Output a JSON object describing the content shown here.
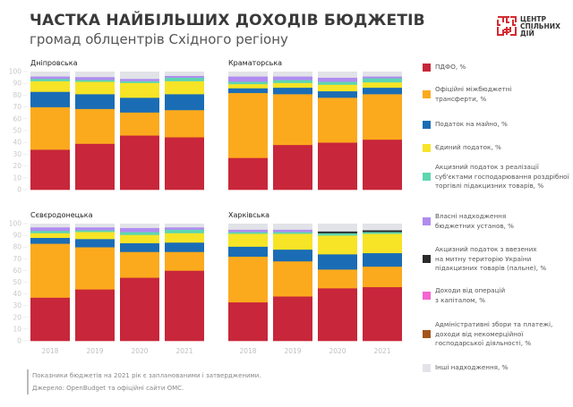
{
  "header": {
    "title": "ЧАСТКА НАЙБІЛЬШИХ ДОХОДІВ БЮДЖЕТІВ",
    "subtitle": "громад облцентрів Східного регіону"
  },
  "logo": {
    "lines": [
      "ЦЕНТР",
      "СПІЛЬНИХ",
      "ДІЙ"
    ],
    "color": "#d42b31"
  },
  "footer": {
    "note": "Показники бюджетів на 2021 рік є запланованими і затвердженими.",
    "source": "Джерело: OpenBudget та офіційні сайти ОМС."
  },
  "legend": [
    {
      "key": "pdfo",
      "label": "ПДФО, %",
      "color": "#c8263a"
    },
    {
      "key": "transfers",
      "label": "Офіційні міжбюджетні\nтрансферти, %",
      "color": "#fbaa1d"
    },
    {
      "key": "property",
      "label": "Податок на майно, %",
      "color": "#1a6db5"
    },
    {
      "key": "single",
      "label": "Єдиний податок, %",
      "color": "#f7e426"
    },
    {
      "key": "excise_retail",
      "label": "Акцизний податок з реалізації\nсуб'єктами господарювання роздрібної\nторгівлі підакцизних товарів, %",
      "color": "#5ed6b0"
    },
    {
      "key": "own",
      "label": "Власні надходження\nбюджетних установ, %",
      "color": "#b08cf0"
    },
    {
      "key": "excise_import",
      "label": "Акцизний податок з ввезених\nна митну територію України\nпідакцизних товарів (пальне), %",
      "color": "#2b2b2b"
    },
    {
      "key": "capital",
      "label": "Доходи від операцій\nз капіталом, %",
      "color": "#f466d0"
    },
    {
      "key": "admin",
      "label": "Адміністративні збори та платежі,\nдоходи від некомерційної\nгосподарської діяльності, %",
      "color": "#a4541b"
    },
    {
      "key": "other",
      "label": "Інші надходження, %",
      "color": "#e1e3e8"
    }
  ],
  "chart_data": [
    {
      "type": "bar",
      "stacked": true,
      "title": "Дніпровська",
      "categories": [
        "2018",
        "2019",
        "2020",
        "2021"
      ],
      "yticks": [
        "0",
        "10",
        "20",
        "30",
        "40",
        "50",
        "60",
        "70",
        "80",
        "90",
        "100"
      ],
      "ylim": [
        0,
        100
      ],
      "series": [
        {
          "name": "ПДФО, %",
          "values": [
            34,
            39,
            46,
            44.5
          ]
        },
        {
          "name": "Офіційні міжбюджетні трансферти, %",
          "values": [
            36,
            29.5,
            19.5,
            23
          ]
        },
        {
          "name": "Податок на майно, %",
          "values": [
            13,
            12.5,
            12.5,
            13.5
          ]
        },
        {
          "name": "Єдиний податок, %",
          "values": [
            9,
            10.5,
            12.5,
            11
          ]
        },
        {
          "name": "Акцизний податок з реалізації суб'єктами господарювання роздрібної торгівлі підакцизних товарів, %",
          "values": [
            2,
            1.5,
            1.5,
            3
          ]
        },
        {
          "name": "Власні надходження бюджетних установ, %",
          "values": [
            2,
            2.5,
            2,
            1.5
          ]
        },
        {
          "name": "Акцизний податок з ввезених на митну територію України підакцизних товарів (пальне), %",
          "values": [
            0,
            0,
            0,
            0
          ]
        },
        {
          "name": "Інші надходження, %",
          "values": [
            4,
            4.5,
            6,
            3.5
          ]
        }
      ]
    },
    {
      "type": "bar",
      "stacked": true,
      "title": "Краматорська",
      "categories": [
        "2018",
        "2019",
        "2020",
        "2021"
      ],
      "ylim": [
        0,
        100
      ],
      "series": [
        {
          "name": "ПДФО, %",
          "values": [
            27,
            38,
            40,
            42.5
          ]
        },
        {
          "name": "Офіційні міжбюджетні трансферти, %",
          "values": [
            55,
            43,
            38,
            38.5
          ]
        },
        {
          "name": "Податок на майно, %",
          "values": [
            4,
            5.5,
            5.5,
            5.5
          ]
        },
        {
          "name": "Єдиний податок, %",
          "values": [
            3.5,
            4,
            5.5,
            4.5
          ]
        },
        {
          "name": "Акцизний податок з реалізації суб'єктами господарювання роздрібної торгівлі підакцизних товарів, %",
          "values": [
            2,
            2.5,
            2.5,
            3.5
          ]
        },
        {
          "name": "Власні надходження бюджетних установ, %",
          "values": [
            4.5,
            3,
            3.5,
            1.5
          ]
        },
        {
          "name": "Акцизний податок з ввезених на митну територію України підакцизних товарів (пальне), %",
          "values": [
            0,
            0,
            0,
            0
          ]
        },
        {
          "name": "Інші надходження, %",
          "values": [
            4,
            4,
            5,
            4
          ]
        }
      ]
    },
    {
      "type": "bar",
      "stacked": true,
      "title": "Сєвєродонецька",
      "categories": [
        "2018",
        "2019",
        "2020",
        "2021"
      ],
      "yticks": [
        "0",
        "10",
        "20",
        "30",
        "40",
        "50",
        "60",
        "70",
        "80",
        "90",
        "100"
      ],
      "ylim": [
        0,
        100
      ],
      "series": [
        {
          "name": "ПДФО, %",
          "values": [
            37,
            44,
            54,
            60
          ]
        },
        {
          "name": "Офіційні міжбюджетні трансферти, %",
          "values": [
            46,
            36,
            22,
            16
          ]
        },
        {
          "name": "Податок на майно, %",
          "values": [
            5,
            7,
            7.5,
            8
          ]
        },
        {
          "name": "Єдиний податок, %",
          "values": [
            4,
            6,
            7,
            8
          ]
        },
        {
          "name": "Акцизний податок з реалізації суб'єктами господарювання роздрібної торгівлі підакцизних товарів, %",
          "values": [
            2,
            1.5,
            2.5,
            3
          ]
        },
        {
          "name": "Власні надходження бюджетних установ, %",
          "values": [
            3,
            2.5,
            3.5,
            2
          ]
        },
        {
          "name": "Акцизний податок з ввезених на митну територію України підакцизних товарів (пальне), %",
          "values": [
            0,
            0,
            0,
            0
          ]
        },
        {
          "name": "Інші надходження, %",
          "values": [
            3,
            3,
            3.5,
            3
          ]
        }
      ]
    },
    {
      "type": "bar",
      "stacked": true,
      "title": "Харківська",
      "categories": [
        "2018",
        "2019",
        "2020",
        "2021"
      ],
      "ylim": [
        0,
        100
      ],
      "series": [
        {
          "name": "ПДФО, %",
          "values": [
            33,
            38,
            45,
            46
          ]
        },
        {
          "name": "Офіційні міжбюджетні трансферти, %",
          "values": [
            39,
            30,
            16,
            17.5
          ]
        },
        {
          "name": "Податок на майно, %",
          "values": [
            8.5,
            10,
            13,
            11.5
          ]
        },
        {
          "name": "Єдиний податок, %",
          "values": [
            11,
            13.5,
            16,
            16.5
          ]
        },
        {
          "name": "Акцизний податок з реалізації суб'єктами господарювання роздрібної торгівлі підакцизних товарів, %",
          "values": [
            1.5,
            1.5,
            2,
            1.5
          ]
        },
        {
          "name": "Власні надходження бюджетних установ, %",
          "values": [
            2,
            2,
            0,
            0
          ]
        },
        {
          "name": "Акцизний податок з ввезених на митну територію України підакцизних товарів (пальне), %",
          "values": [
            0,
            0,
            1.5,
            1.5
          ]
        },
        {
          "name": "Інші надходження, %",
          "values": [
            5,
            5,
            6.5,
            5.5
          ]
        }
      ]
    }
  ]
}
